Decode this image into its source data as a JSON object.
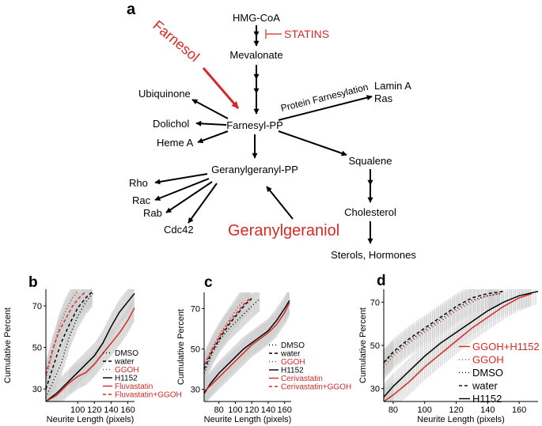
{
  "pathway": {
    "panel_label": "a",
    "nodes": {
      "hmg": "HMG-CoA",
      "statins": "STATINS",
      "mevalonate": "Mevalonate",
      "farnesol": "Farnesol",
      "ubiquinone": "Ubiquinone",
      "dolichol": "Dolichol",
      "heme": "Heme A",
      "farnesyl_pp": "Farnesyl-PP",
      "protein_farnesylation": "Protein Farnesylation",
      "lamin": "Lamin A",
      "ras": "Ras",
      "squalene": "Squalene",
      "geranylgeranyl_pp": "Geranylgeranyl-PP",
      "rho": "Rho",
      "rac": "Rac",
      "rab": "Rab",
      "cdc42": "Cdc42",
      "geranylgeraniol": "Geranylgeraniol",
      "cholesterol": "Cholesterol",
      "sterols": "Sterols, Hormones"
    },
    "colors": {
      "red": "#d42a27",
      "black": "#000000"
    }
  },
  "chart_data": [
    {
      "panel_label": "b",
      "type": "line",
      "xlabel": "Neurite Length (pixels)",
      "ylabel": "Cumulative Percent",
      "xlim": [
        62,
        168
      ],
      "ylim": [
        24,
        78
      ],
      "xticks": [
        100,
        120,
        140,
        160
      ],
      "yticks": [
        30,
        50,
        70
      ],
      "series": [
        {
          "name": "DMSO",
          "color": "#000000",
          "dash": "1,3",
          "x": [
            62,
            70,
            80,
            90,
            100,
            110,
            118
          ],
          "y": [
            26,
            33,
            42,
            55,
            65,
            72,
            76
          ]
        },
        {
          "name": "water",
          "color": "#000000",
          "dash": "4,3",
          "x": [
            62,
            70,
            80,
            90,
            100,
            110,
            118
          ],
          "y": [
            30,
            40,
            52,
            61,
            69,
            74,
            77
          ]
        },
        {
          "name": "GGOH",
          "color": "#d42a27",
          "dash": "1,3",
          "x": [
            62,
            70,
            78,
            86,
            94,
            100
          ],
          "y": [
            35,
            48,
            60,
            68,
            74,
            77
          ]
        },
        {
          "name": "H1152",
          "color": "#000000",
          "dash": "",
          "x": [
            62,
            75,
            90,
            100,
            110,
            120,
            130,
            140,
            150,
            160,
            168
          ],
          "y": [
            24,
            28,
            34,
            38,
            42,
            46,
            52,
            60,
            67,
            72,
            76
          ]
        },
        {
          "name": "Fluvastatin",
          "color": "#d42a27",
          "dash": "",
          "x": [
            62,
            75,
            90,
            100,
            110,
            120,
            130,
            140,
            150,
            160,
            168
          ],
          "y": [
            24,
            27,
            33,
            36,
            38,
            42,
            47,
            52,
            57,
            63,
            69
          ]
        },
        {
          "name": "Fluvastatin+GGOH",
          "color": "#d42a27",
          "dash": "4,3",
          "x": [
            62,
            70,
            78,
            86,
            94,
            102,
            110
          ],
          "y": [
            37,
            49,
            58,
            64,
            70,
            74,
            77
          ]
        }
      ]
    },
    {
      "panel_label": "c",
      "type": "line",
      "xlabel": "Neurite Length (pixels)",
      "ylabel": "Cumulative Percent",
      "xlim": [
        62,
        168
      ],
      "ylim": [
        24,
        78
      ],
      "xticks": [
        80,
        100,
        120,
        140,
        160
      ],
      "yticks": [
        30,
        50,
        70
      ],
      "series": [
        {
          "name": "DMSO",
          "color": "#000000",
          "dash": "1,3",
          "x": [
            62,
            72,
            82,
            92,
            102,
            112,
            122,
            130
          ],
          "y": [
            38,
            48,
            55,
            60,
            64,
            68,
            72,
            75
          ]
        },
        {
          "name": "water",
          "color": "#000000",
          "dash": "4,3",
          "x": [
            62,
            72,
            82,
            92,
            102,
            112,
            120
          ],
          "y": [
            40,
            49,
            56,
            62,
            67,
            72,
            75
          ]
        },
        {
          "name": "GGOH",
          "color": "#d42a27",
          "dash": "1,3",
          "x": [
            62,
            72,
            82,
            92,
            102,
            110
          ],
          "y": [
            42,
            51,
            58,
            64,
            70,
            74
          ]
        },
        {
          "name": "H1152",
          "color": "#000000",
          "dash": "",
          "x": [
            62,
            70,
            80,
            90,
            100,
            110,
            120,
            130,
            140,
            150,
            160,
            166
          ],
          "y": [
            28,
            33,
            38,
            42,
            46,
            50,
            53,
            56,
            59,
            64,
            70,
            74
          ]
        },
        {
          "name": "Cerivastatin",
          "color": "#d42a27",
          "dash": "",
          "x": [
            62,
            70,
            80,
            90,
            100,
            110,
            120,
            130,
            140,
            150,
            160,
            166
          ],
          "y": [
            29,
            32,
            36,
            40,
            44,
            48,
            52,
            55,
            58,
            62,
            68,
            73
          ]
        },
        {
          "name": "Cerivastatin+GGOH",
          "color": "#d42a27",
          "dash": "4,3",
          "x": [
            62,
            72,
            82,
            92,
            102,
            112,
            118
          ],
          "y": [
            42,
            50,
            57,
            63,
            68,
            73,
            75
          ]
        }
      ]
    },
    {
      "panel_label": "d",
      "type": "line",
      "xlabel": "Neurite Length (pixels)",
      "ylabel": "Cumulative Percent",
      "xlim": [
        74,
        172
      ],
      "ylim": [
        24,
        76
      ],
      "xticks": [
        80,
        100,
        120,
        140,
        160
      ],
      "yticks": [
        30,
        50,
        70
      ],
      "series": [
        {
          "name": "GGOH+H1152",
          "color": "#d42a27",
          "dash": "",
          "x": [
            74,
            80,
            90,
            100,
            110,
            120,
            130,
            140,
            150,
            160,
            168
          ],
          "y": [
            24,
            27,
            33,
            40,
            46,
            52,
            58,
            63,
            68,
            72,
            74
          ]
        },
        {
          "name": "GGOH",
          "color": "#d42a27",
          "dash": "1,3",
          "x": [
            74,
            80,
            90,
            100,
            110,
            120,
            130,
            140,
            148
          ],
          "y": [
            40,
            45,
            51,
            56,
            61,
            66,
            70,
            73,
            74
          ]
        },
        {
          "name": "DMSO",
          "color": "#000000",
          "dash": "1,3",
          "x": [
            74,
            80,
            90,
            100,
            110,
            120,
            130,
            140,
            148
          ],
          "y": [
            42,
            46,
            52,
            57,
            62,
            67,
            71,
            73,
            74
          ]
        },
        {
          "name": "water",
          "color": "#000000",
          "dash": "4,3",
          "x": [
            74,
            80,
            90,
            100,
            110,
            120,
            130,
            140,
            150
          ],
          "y": [
            42,
            47,
            53,
            58,
            63,
            68,
            72,
            74,
            75
          ]
        },
        {
          "name": "H1152",
          "color": "#000000",
          "dash": "",
          "x": [
            74,
            80,
            90,
            100,
            110,
            120,
            130,
            140,
            150,
            160,
            172
          ],
          "y": [
            26,
            31,
            38,
            45,
            51,
            56,
            61,
            66,
            70,
            73,
            75
          ]
        }
      ]
    }
  ]
}
